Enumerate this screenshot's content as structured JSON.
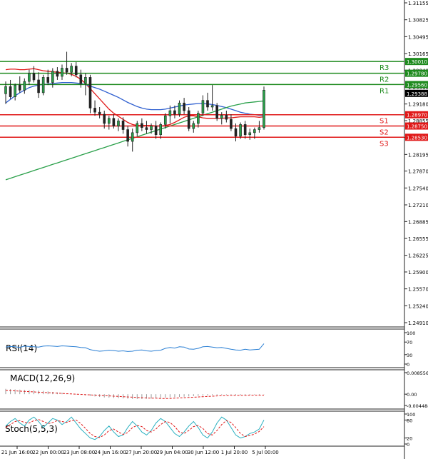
{
  "chart_data": {
    "type": "candlestick",
    "price_axis": {
      "ticks": [
        "1.31155",
        "1.30825",
        "1.30495",
        "1.30165",
        "1.29840",
        "1.29510",
        "1.29180",
        "1.28855",
        "1.28525",
        "1.28195",
        "1.27870",
        "1.27540",
        "1.27210",
        "1.26885",
        "1.26555",
        "1.26225",
        "1.25900",
        "1.25570",
        "1.25240",
        "1.24910"
      ],
      "min": 1.2491,
      "max": 1.31155
    },
    "time_axis": {
      "labels": [
        "21 Jun 16:00",
        "22 Jun 00:00",
        "23 Jun 08:00",
        "24 Jun 16:00",
        "27 Jun 20:00",
        "29 Jun 04:00",
        "30 Jun 12:00",
        "1 Jul 20:00",
        "5 Jul 00:00"
      ]
    },
    "current_price": {
      "value": 1.29388,
      "label": "1.29388"
    },
    "levels": [
      {
        "name": "R3",
        "value": 1.3001,
        "label": "1.30010",
        "color": "#1e8a1e"
      },
      {
        "name": "R2",
        "value": 1.2978,
        "label": "1.29780",
        "color": "#1e8a1e"
      },
      {
        "name": "R1",
        "value": 1.2956,
        "label": "1.29560",
        "color": "#1e8a1e"
      },
      {
        "name": "S1",
        "value": 1.2897,
        "label": "1.28970",
        "color": "#e01818"
      },
      {
        "name": "S2",
        "value": 1.2875,
        "label": "1.28750",
        "color": "#e01818"
      },
      {
        "name": "S3",
        "value": 1.2853,
        "label": "1.28530",
        "color": "#e01818"
      }
    ],
    "candles": [
      {
        "o": 1.2938,
        "h": 1.2962,
        "l": 1.2918,
        "c": 1.2952
      },
      {
        "o": 1.2952,
        "h": 1.2965,
        "l": 1.2928,
        "c": 1.2932
      },
      {
        "o": 1.2932,
        "h": 1.2958,
        "l": 1.2925,
        "c": 1.2955
      },
      {
        "o": 1.2955,
        "h": 1.2972,
        "l": 1.294,
        "c": 1.2945
      },
      {
        "o": 1.2945,
        "h": 1.2968,
        "l": 1.2938,
        "c": 1.2962
      },
      {
        "o": 1.2962,
        "h": 1.2985,
        "l": 1.2955,
        "c": 1.2978
      },
      {
        "o": 1.2978,
        "h": 1.2992,
        "l": 1.296,
        "c": 1.2965
      },
      {
        "o": 1.2965,
        "h": 1.298,
        "l": 1.293,
        "c": 1.294
      },
      {
        "o": 1.294,
        "h": 1.2975,
        "l": 1.2935,
        "c": 1.297
      },
      {
        "o": 1.297,
        "h": 1.2985,
        "l": 1.2955,
        "c": 1.296
      },
      {
        "o": 1.296,
        "h": 1.2988,
        "l": 1.295,
        "c": 1.2982
      },
      {
        "o": 1.2982,
        "h": 1.299,
        "l": 1.2965,
        "c": 1.2972
      },
      {
        "o": 1.2972,
        "h": 1.2995,
        "l": 1.2965,
        "c": 1.2988
      },
      {
        "o": 1.2988,
        "h": 1.302,
        "l": 1.2975,
        "c": 1.298
      },
      {
        "o": 1.298,
        "h": 1.2998,
        "l": 1.2972,
        "c": 1.2992
      },
      {
        "o": 1.2992,
        "h": 1.3,
        "l": 1.297,
        "c": 1.2975
      },
      {
        "o": 1.2975,
        "h": 1.2985,
        "l": 1.295,
        "c": 1.2958
      },
      {
        "o": 1.2958,
        "h": 1.2978,
        "l": 1.2935,
        "c": 1.297
      },
      {
        "o": 1.297,
        "h": 1.2975,
        "l": 1.29,
        "c": 1.291
      },
      {
        "o": 1.291,
        "h": 1.2925,
        "l": 1.2895,
        "c": 1.2902
      },
      {
        "o": 1.2902,
        "h": 1.2912,
        "l": 1.289,
        "c": 1.2898
      },
      {
        "o": 1.2898,
        "h": 1.2905,
        "l": 1.287,
        "c": 1.288
      },
      {
        "o": 1.288,
        "h": 1.2895,
        "l": 1.2868,
        "c": 1.289
      },
      {
        "o": 1.289,
        "h": 1.2898,
        "l": 1.287,
        "c": 1.2875
      },
      {
        "o": 1.2875,
        "h": 1.289,
        "l": 1.2865,
        "c": 1.2885
      },
      {
        "o": 1.2885,
        "h": 1.2892,
        "l": 1.286,
        "c": 1.2868
      },
      {
        "o": 1.2868,
        "h": 1.2875,
        "l": 1.2835,
        "c": 1.2845
      },
      {
        "o": 1.2845,
        "h": 1.287,
        "l": 1.2825,
        "c": 1.2862
      },
      {
        "o": 1.2862,
        "h": 1.2885,
        "l": 1.2855,
        "c": 1.288
      },
      {
        "o": 1.288,
        "h": 1.289,
        "l": 1.2865,
        "c": 1.2872
      },
      {
        "o": 1.2872,
        "h": 1.2885,
        "l": 1.286,
        "c": 1.2868
      },
      {
        "o": 1.2868,
        "h": 1.288,
        "l": 1.286,
        "c": 1.2875
      },
      {
        "o": 1.2875,
        "h": 1.2885,
        "l": 1.285,
        "c": 1.2858
      },
      {
        "o": 1.2858,
        "h": 1.2882,
        "l": 1.285,
        "c": 1.2878
      },
      {
        "o": 1.2878,
        "h": 1.29,
        "l": 1.287,
        "c": 1.2895
      },
      {
        "o": 1.2895,
        "h": 1.2915,
        "l": 1.288,
        "c": 1.2905
      },
      {
        "o": 1.2905,
        "h": 1.2915,
        "l": 1.289,
        "c": 1.2898
      },
      {
        "o": 1.2898,
        "h": 1.2925,
        "l": 1.2893,
        "c": 1.292
      },
      {
        "o": 1.292,
        "h": 1.293,
        "l": 1.2898,
        "c": 1.2905
      },
      {
        "o": 1.2905,
        "h": 1.2912,
        "l": 1.2865,
        "c": 1.287
      },
      {
        "o": 1.287,
        "h": 1.2885,
        "l": 1.2862,
        "c": 1.288
      },
      {
        "o": 1.288,
        "h": 1.2905,
        "l": 1.2872,
        "c": 1.29
      },
      {
        "o": 1.29,
        "h": 1.2935,
        "l": 1.2895,
        "c": 1.2925
      },
      {
        "o": 1.2925,
        "h": 1.294,
        "l": 1.2905,
        "c": 1.2912
      },
      {
        "o": 1.2912,
        "h": 1.2955,
        "l": 1.2905,
        "c": 1.2915
      },
      {
        "o": 1.2915,
        "h": 1.292,
        "l": 1.2885,
        "c": 1.289
      },
      {
        "o": 1.289,
        "h": 1.2902,
        "l": 1.2878,
        "c": 1.2896
      },
      {
        "o": 1.2896,
        "h": 1.2905,
        "l": 1.2882,
        "c": 1.2888
      },
      {
        "o": 1.2888,
        "h": 1.2898,
        "l": 1.2865,
        "c": 1.287
      },
      {
        "o": 1.287,
        "h": 1.288,
        "l": 1.2845,
        "c": 1.2855
      },
      {
        "o": 1.2855,
        "h": 1.2882,
        "l": 1.285,
        "c": 1.2878
      },
      {
        "o": 1.2878,
        "h": 1.2885,
        "l": 1.285,
        "c": 1.2858
      },
      {
        "o": 1.2858,
        "h": 1.287,
        "l": 1.2848,
        "c": 1.2862
      },
      {
        "o": 1.2862,
        "h": 1.2872,
        "l": 1.285,
        "c": 1.2868
      },
      {
        "o": 1.2868,
        "h": 1.2885,
        "l": 1.2862,
        "c": 1.2872
      },
      {
        "o": 1.2872,
        "h": 1.2952,
        "l": 1.2868,
        "c": 1.2945
      }
    ],
    "moving_averages": [
      {
        "color": "#e01818",
        "values": [
          1.2985,
          1.2986,
          1.2986,
          1.2985,
          1.2985,
          1.2986,
          1.2987,
          1.2985,
          1.2983,
          1.2982,
          1.2981,
          1.298,
          1.2979,
          1.2978,
          1.2976,
          1.2972,
          1.2966,
          1.2958,
          1.2948,
          1.2938,
          1.2928,
          1.2918,
          1.2908,
          1.29,
          1.2894,
          1.2888,
          1.2882,
          1.2878,
          1.2876,
          1.2876,
          1.2876,
          1.2876,
          1.2875,
          1.2875,
          1.2876,
          1.2878,
          1.2882,
          1.2887,
          1.2892,
          1.2895,
          1.2895,
          1.2893,
          1.2891,
          1.289,
          1.289,
          1.289,
          1.289,
          1.2891,
          1.2891,
          1.2892,
          1.2893,
          1.2893,
          1.2893,
          1.2893,
          1.2892,
          1.2893
        ]
      },
      {
        "color": "#3060d0",
        "values": [
          1.292,
          1.2927,
          1.2934,
          1.294,
          1.2945,
          1.295,
          1.2953,
          1.2955,
          1.2956,
          1.2957,
          1.2958,
          1.2959,
          1.296,
          1.296,
          1.296,
          1.2959,
          1.2958,
          1.2956,
          1.2953,
          1.295,
          1.2947,
          1.2943,
          1.2939,
          1.2935,
          1.2931,
          1.2926,
          1.2921,
          1.2917,
          1.2913,
          1.291,
          1.2908,
          1.2907,
          1.2907,
          1.2907,
          1.2908,
          1.291,
          1.2912,
          1.2914,
          1.2916,
          1.2917,
          1.2918,
          1.2919,
          1.2919,
          1.2918,
          1.2917,
          1.2915,
          1.2913,
          1.2911,
          1.2908,
          1.2905,
          1.2902,
          1.29,
          1.2898,
          1.2897,
          1.2896,
          1.2896
        ]
      },
      {
        "color": "#2aa04a",
        "values": [
          1.277,
          1.2773,
          1.2776,
          1.2779,
          1.2782,
          1.2785,
          1.2788,
          1.2791,
          1.2794,
          1.2797,
          1.28,
          1.2803,
          1.2806,
          1.2809,
          1.2812,
          1.2815,
          1.2818,
          1.2821,
          1.2824,
          1.2827,
          1.283,
          1.2833,
          1.2836,
          1.2839,
          1.2842,
          1.2845,
          1.2848,
          1.2851,
          1.2854,
          1.2857,
          1.286,
          1.2863,
          1.2866,
          1.2869,
          1.2872,
          1.2875,
          1.2878,
          1.2881,
          1.2884,
          1.2887,
          1.289,
          1.2893,
          1.2896,
          1.2899,
          1.2902,
          1.2905,
          1.2908,
          1.2911,
          1.2914,
          1.2916,
          1.2918,
          1.292,
          1.2921,
          1.2922,
          1.2923,
          1.2924
        ]
      }
    ],
    "rsi": {
      "label": "RSI(14)",
      "axis_labels": [
        "100",
        "70",
        "30",
        "0"
      ],
      "levels": [
        70,
        30
      ],
      "color": "#2a7fd4",
      "values": [
        54,
        56,
        55,
        53,
        57,
        56,
        55,
        54,
        57,
        58,
        57,
        56,
        58,
        57,
        56,
        55,
        53,
        52,
        46,
        43,
        41,
        42,
        44,
        43,
        41,
        42,
        40,
        41,
        44,
        45,
        42,
        41,
        43,
        44,
        50,
        53,
        51,
        55,
        54,
        48,
        47,
        50,
        55,
        56,
        54,
        52,
        53,
        50,
        47,
        45,
        44,
        47,
        45,
        46,
        47,
        65
      ]
    },
    "macd": {
      "label": "MACD(12,26,9)",
      "axis_labels": [
        "0.008556",
        "0.00",
        "-0.004488"
      ],
      "min": -0.004488,
      "max": 0.008556,
      "bar_color": "#999999",
      "signal_color": "#e01818",
      "histogram": [
        0.0021,
        0.002,
        0.0019,
        0.0018,
        0.0017,
        0.0016,
        0.0015,
        0.0014,
        0.0013,
        0.0011,
        0.0009,
        0.0007,
        0.0005,
        0.0003,
        0.0001,
        -0.0001,
        -0.0003,
        -0.0005,
        -0.0007,
        -0.0009,
        -0.0011,
        -0.0013,
        -0.0014,
        -0.0015,
        -0.0016,
        -0.0017,
        -0.0018,
        -0.0019,
        -0.0019,
        -0.0019,
        -0.0018,
        -0.0017,
        -0.0016,
        -0.0015,
        -0.0014,
        -0.0013,
        -0.0012,
        -0.0011,
        -0.001,
        -0.0009,
        -0.0008,
        -0.0007,
        -0.0006,
        -0.0005,
        -0.0004,
        -0.0003,
        -0.0002,
        -0.0002,
        -0.0002,
        -0.0003,
        -0.0003,
        -0.0003,
        -0.0003,
        -0.0002,
        -0.0002,
        -0.0001
      ],
      "signal": [
        0.0015,
        0.0014,
        0.0013,
        0.0012,
        0.0011,
        0.001,
        0.0009,
        0.0008,
        0.0007,
        0.0006,
        0.0005,
        0.0004,
        0.0003,
        0.0002,
        0.0001,
        0.0,
        -0.0001,
        -0.0002,
        -0.0003,
        -0.0004,
        -0.0005,
        -0.0006,
        -0.0007,
        -0.0008,
        -0.0009,
        -0.001,
        -0.0011,
        -0.0012,
        -0.0013,
        -0.0014,
        -0.0015,
        -0.0016,
        -0.0016,
        -0.0017,
        -0.0017,
        -0.0017,
        -0.0016,
        -0.0015,
        -0.0014,
        -0.0013,
        -0.0012,
        -0.0011,
        -0.001,
        -0.0009,
        -0.0008,
        -0.0007,
        -0.0006,
        -0.0006,
        -0.0005,
        -0.0005,
        -0.0005,
        -0.0005,
        -0.0004,
        -0.0004,
        -0.0004,
        -0.0004
      ]
    },
    "stoch": {
      "label": "Stoch(5,5,3)",
      "axis_labels": [
        "100",
        "80",
        "20",
        "0"
      ],
      "levels": [
        80,
        20
      ],
      "k_color": "#2ab0c0",
      "d_color": "#e01818",
      "k": [
        60,
        75,
        85,
        70,
        60,
        80,
        90,
        75,
        55,
        70,
        85,
        80,
        65,
        75,
        90,
        70,
        50,
        35,
        20,
        15,
        25,
        45,
        60,
        40,
        25,
        30,
        55,
        75,
        60,
        40,
        30,
        45,
        70,
        85,
        75,
        55,
        35,
        25,
        40,
        60,
        75,
        55,
        30,
        20,
        40,
        70,
        90,
        80,
        55,
        30,
        20,
        25,
        35,
        40,
        50,
        80
      ],
      "d": [
        55,
        65,
        75,
        78,
        72,
        70,
        78,
        82,
        75,
        68,
        72,
        78,
        75,
        72,
        78,
        80,
        68,
        52,
        35,
        25,
        22,
        30,
        45,
        50,
        40,
        32,
        38,
        55,
        62,
        58,
        45,
        40,
        50,
        65,
        75,
        72,
        58,
        40,
        35,
        45,
        58,
        62,
        52,
        35,
        30,
        45,
        65,
        78,
        72,
        55,
        35,
        25,
        28,
        33,
        42,
        58
      ]
    }
  }
}
